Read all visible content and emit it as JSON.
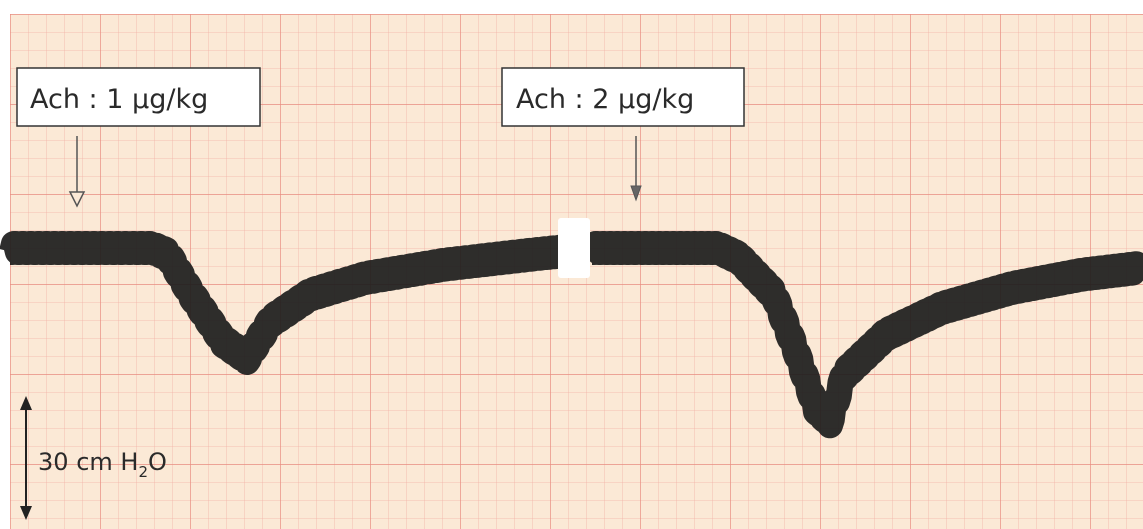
{
  "chart_data": {
    "type": "line",
    "annotations": [
      {
        "prefix": "Ach",
        "separator": ":",
        "dose": "1",
        "unit": "µg/kg"
      },
      {
        "prefix": "Ach",
        "separator": ":",
        "dose": "2",
        "unit": "µg/kg"
      }
    ],
    "scale_bar": {
      "value": "30",
      "unit_prefix": "cm H",
      "unit_subscript": "2",
      "unit_suffix": "O",
      "length_cm_h2o": 30
    },
    "y_unit": "cm H2O",
    "ylim": [
      -70,
      10
    ],
    "grid": true,
    "series": [
      {
        "segment": "Ach 1 µg/kg",
        "points": [
          [
            0,
            0
          ],
          [
            18,
            0
          ],
          [
            20,
            -2
          ],
          [
            23,
            -14
          ],
          [
            27,
            -28
          ],
          [
            30,
            -33
          ],
          [
            33,
            -22
          ],
          [
            38,
            -14
          ],
          [
            45,
            -9
          ],
          [
            55,
            -5
          ],
          [
            66,
            -2
          ],
          [
            70,
            -1
          ]
        ]
      },
      {
        "segment": "Ach 2 µg/kg",
        "points": [
          [
            0,
            0
          ],
          [
            18,
            0
          ],
          [
            21,
            -3
          ],
          [
            26,
            -14
          ],
          [
            29,
            -30
          ],
          [
            32,
            -48
          ],
          [
            34,
            -52
          ],
          [
            36,
            -38
          ],
          [
            42,
            -26
          ],
          [
            50,
            -18
          ],
          [
            60,
            -12
          ],
          [
            70,
            -8
          ],
          [
            78,
            -6
          ]
        ]
      }
    ]
  }
}
